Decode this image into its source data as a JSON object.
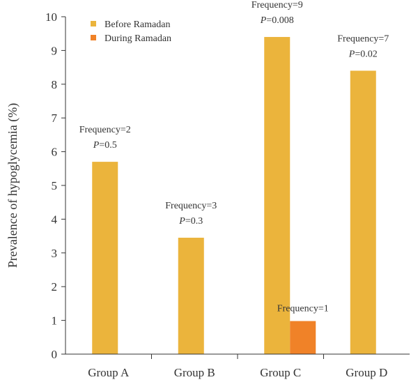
{
  "chart_data": {
    "type": "bar",
    "title": "",
    "xlabel": "",
    "ylabel": "Prevalence of hypoglycemia (%)",
    "ylim": [
      0,
      10
    ],
    "yticks": [
      0,
      1,
      2,
      3,
      4,
      5,
      6,
      7,
      8,
      9,
      10
    ],
    "grid": false,
    "legend_position": "top-left",
    "categories": [
      "Group A",
      "Group B",
      "Group C",
      "Group D"
    ],
    "series": [
      {
        "name": "Before Ramadan",
        "color": "#EBB43C",
        "values": [
          5.7,
          3.45,
          9.4,
          8.4
        ]
      },
      {
        "name": "During Ramadan",
        "color": "#F08228",
        "values": [
          0,
          0,
          0.98,
          0
        ]
      }
    ],
    "annotations": [
      {
        "category": "Group A",
        "series": "Before Ramadan",
        "frequency": "Frequency=2",
        "p_label": "P",
        "p_value": "=0.5"
      },
      {
        "category": "Group B",
        "series": "Before Ramadan",
        "frequency": "Frequency=3",
        "p_label": "P",
        "p_value": "=0.3"
      },
      {
        "category": "Group C",
        "series": "Before Ramadan",
        "frequency": "Frequency=9",
        "p_label": "P",
        "p_value": "=0.008"
      },
      {
        "category": "Group D",
        "series": "Before Ramadan",
        "frequency": "Frequency=7",
        "p_label": "P",
        "p_value": "=0.02"
      },
      {
        "category": "Group C",
        "series": "During Ramadan",
        "frequency": "Frequency=1",
        "p_label": "",
        "p_value": ""
      }
    ]
  }
}
